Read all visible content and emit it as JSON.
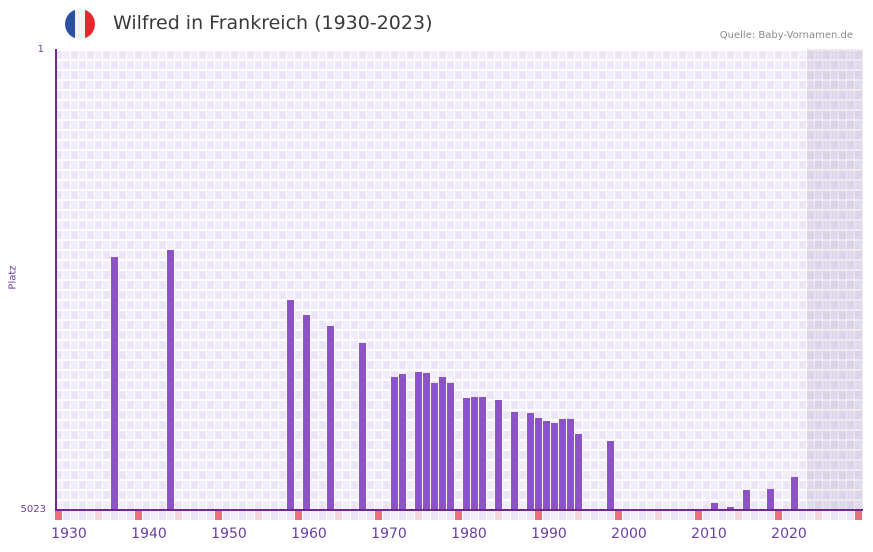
{
  "header": {
    "title": "Wilfred in Frankreich (1930-2023)",
    "flag": {
      "name": "france-flag",
      "colors": [
        "#2b4fa3",
        "#f2f2f2",
        "#e8262f"
      ]
    },
    "source": "Quelle: Baby-Vornamen.de"
  },
  "axes": {
    "y_top_label": "1",
    "y_bottom_label": "5023",
    "y_title": "Platz",
    "x_ticks": [
      "1930",
      "1940",
      "1950",
      "1960",
      "1970",
      "1980",
      "1990",
      "2000",
      "2010",
      "2020"
    ]
  },
  "colors": {
    "bar": "#8c52c6",
    "axis": "#6b2a8c",
    "grid_a": "#f1edfb",
    "grid_b": "#ebe5f7",
    "marker_decade": "#e5717c",
    "marker_half": "#f5d6df",
    "future_shade": "#e2dcec"
  },
  "chart_data": {
    "type": "bar",
    "title": "Wilfred in Frankreich (1930-2023)",
    "xlabel": "",
    "ylabel": "Platz",
    "ylim": [
      5023,
      1
    ],
    "y_inverted": true,
    "x_range": [
      1928,
      2028
    ],
    "shaded_from_year": 2022,
    "grid": true,
    "legend": null,
    "categories": [
      1935,
      1942,
      1957,
      1959,
      1962,
      1966,
      1970,
      1971,
      1973,
      1974,
      1975,
      1976,
      1977,
      1979,
      1980,
      1981,
      1983,
      1985,
      1987,
      1988,
      1989,
      1990,
      1991,
      1992,
      1993,
      1997,
      2010,
      2012,
      2014,
      2017,
      2020
    ],
    "values": [
      2262,
      2186,
      2731,
      2894,
      3014,
      3199,
      3570,
      3537,
      3515,
      3526,
      3635,
      3570,
      3635,
      3799,
      3788,
      3788,
      3821,
      3952,
      3962,
      4017,
      4050,
      4072,
      4028,
      4028,
      4192,
      4268,
      4952,
      4995,
      4810,
      4799,
      4668
    ]
  }
}
